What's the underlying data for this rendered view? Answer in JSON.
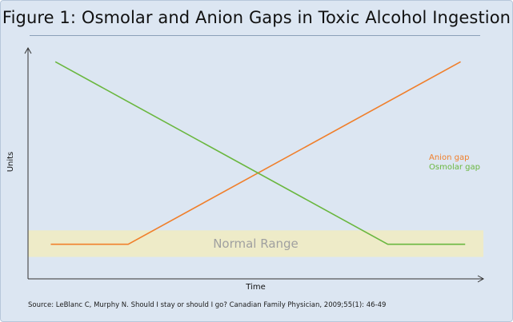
{
  "chart_data": {
    "type": "line",
    "title": "Figure 1: Osmolar and Anion Gaps in Toxic Alcohol Ingestion",
    "xlabel": "Time",
    "ylabel": "Units",
    "xlim": [
      0,
      10
    ],
    "ylim": [
      0,
      10
    ],
    "x_ticks": false,
    "y_ticks": false,
    "grid": false,
    "legend_placement": "right",
    "band": {
      "label": "Normal Range",
      "y_range": [
        0.95,
        2.1
      ],
      "color": "#eeebc8"
    },
    "series": [
      {
        "name": "Anion gap",
        "color": "#f07f2b",
        "x": [
          0.5,
          2.2,
          9.5
        ],
        "y": [
          1.5,
          1.5,
          9.4
        ]
      },
      {
        "name": "Osmolar gap",
        "color": "#6ab73f",
        "x": [
          0.6,
          7.9,
          9.6
        ],
        "y": [
          9.4,
          1.5,
          1.5
        ]
      }
    ]
  },
  "source": "Source: LeBlanc C, Murphy N. Should I stay or should I go? Canadian Family Physician, 2009;55(1): 46-49"
}
